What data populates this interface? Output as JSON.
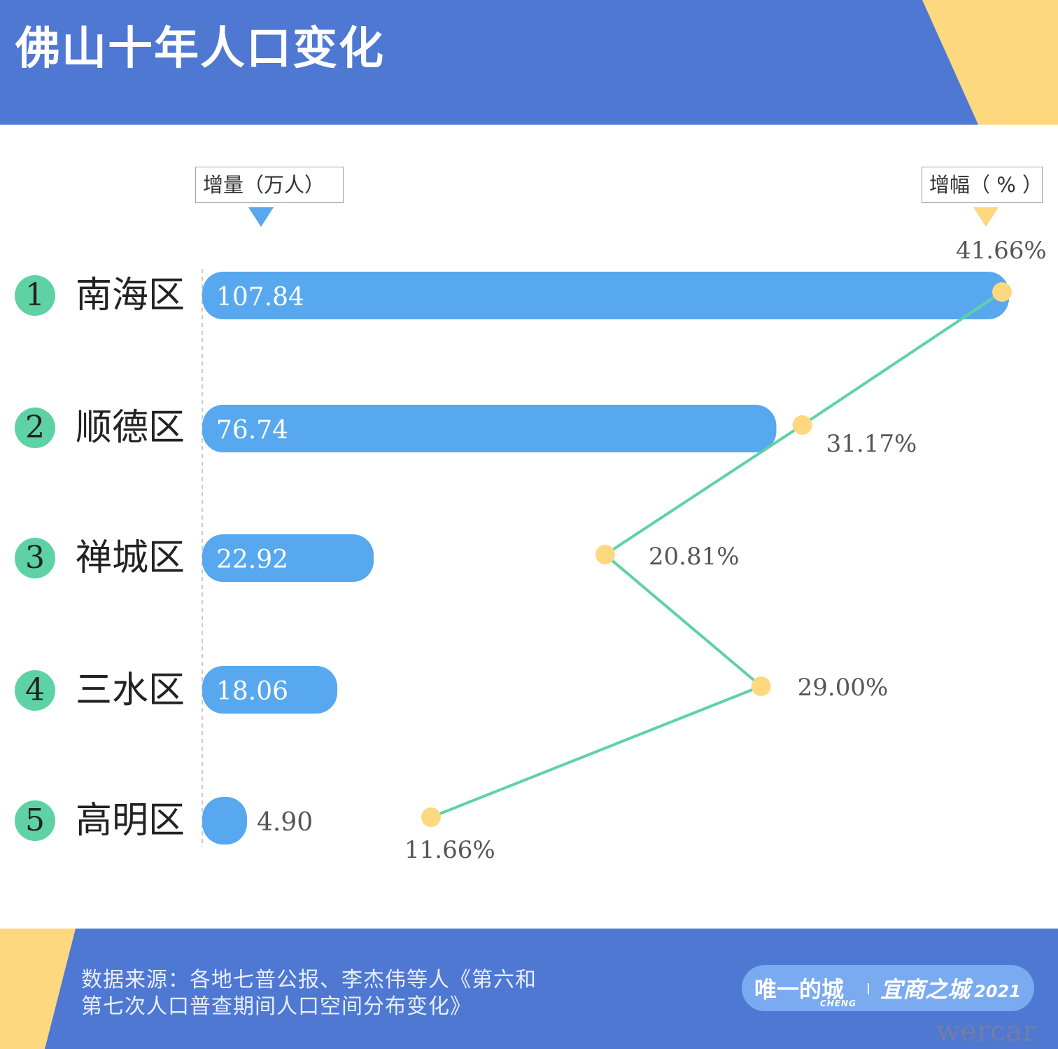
{
  "header": {
    "title": "佛山十年人口变化",
    "background_color": "#4e78d2",
    "accent_color": "#fed87f"
  },
  "legend": {
    "increase_label": "增量（万人）",
    "growth_label": "增幅（ % ）",
    "increase_color": "#57a8ee",
    "growth_color": "#fed87f"
  },
  "chart_data": {
    "type": "bar",
    "categories": [
      "南海区",
      "顺德区",
      "禅城区",
      "三水区",
      "高明区"
    ],
    "ranks": [
      "1",
      "2",
      "3",
      "4",
      "5"
    ],
    "series": [
      {
        "name": "增量（万人）",
        "values": [
          107.84,
          76.74,
          22.92,
          18.06,
          4.9
        ],
        "labels": [
          "107.84",
          "76.74",
          "22.92",
          "18.06",
          "4.90"
        ],
        "color": "#57a8ee"
      },
      {
        "name": "增幅（ % ）",
        "type": "line",
        "values": [
          41.66,
          31.17,
          20.81,
          29.0,
          11.66
        ],
        "labels": [
          "41.66%",
          "31.17%",
          "20.81%",
          "29.00%",
          "11.66%"
        ],
        "line_color": "#5ed2a4",
        "marker_color": "#fed87f"
      }
    ]
  },
  "footer": {
    "source_line_1": "数据来源：各地七普公报、李杰伟等人《第六和",
    "source_line_2": "第七次人口普查期间人口空间分布变化》",
    "brand_left": "唯一的城",
    "brand_sub": "CHENG",
    "brand_right": "宜商之城",
    "brand_year": "2021"
  },
  "watermark": "wercar"
}
